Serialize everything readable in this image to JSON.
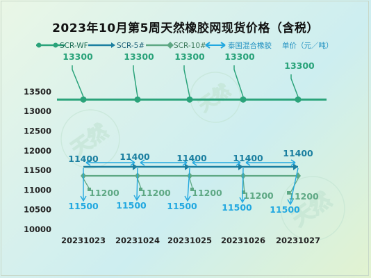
{
  "title": "2023年10月第5周天然橡胶网现货价格（含税）",
  "chart_data": {
    "type": "line",
    "categories": [
      "20231023",
      "20231024",
      "20231025",
      "20231026",
      "20231027"
    ],
    "ylim": [
      10000,
      13500
    ],
    "yticks": [
      "10000",
      "10500",
      "11000",
      "11500",
      "12000",
      "12500",
      "13000",
      "13500"
    ],
    "grid": false,
    "legend_position": "top",
    "unit_label": "单价（元／吨）",
    "series": [
      {
        "name": "SCR-WF",
        "color": "#2aa37a",
        "values": [
          13300,
          13300,
          13300,
          13300,
          13300
        ]
      },
      {
        "name": "SCR-5#",
        "color": "#1b7fa0",
        "values": [
          11400,
          11400,
          11400,
          11400,
          11400
        ]
      },
      {
        "name": "SCR-10#",
        "color": "#5ea884",
        "values": [
          11200,
          11200,
          11200,
          11200,
          11200
        ]
      },
      {
        "name": "泰国混合橡胶",
        "color": "#22a8e0",
        "values": [
          11500,
          11500,
          11500,
          11500,
          11500
        ]
      }
    ],
    "data_labels": {
      "SCR-WF": [
        "13300",
        "13300",
        "13300",
        "13300",
        "13300"
      ],
      "SCR-5#": [
        "11400",
        "11400",
        "11400",
        "11400",
        "11400"
      ],
      "SCR-10#": [
        "11200",
        "11200",
        "11200",
        "11200",
        "11200"
      ],
      "泰国混合橡胶": [
        "11500",
        "11500",
        "11500",
        "11500",
        "11500"
      ]
    }
  }
}
